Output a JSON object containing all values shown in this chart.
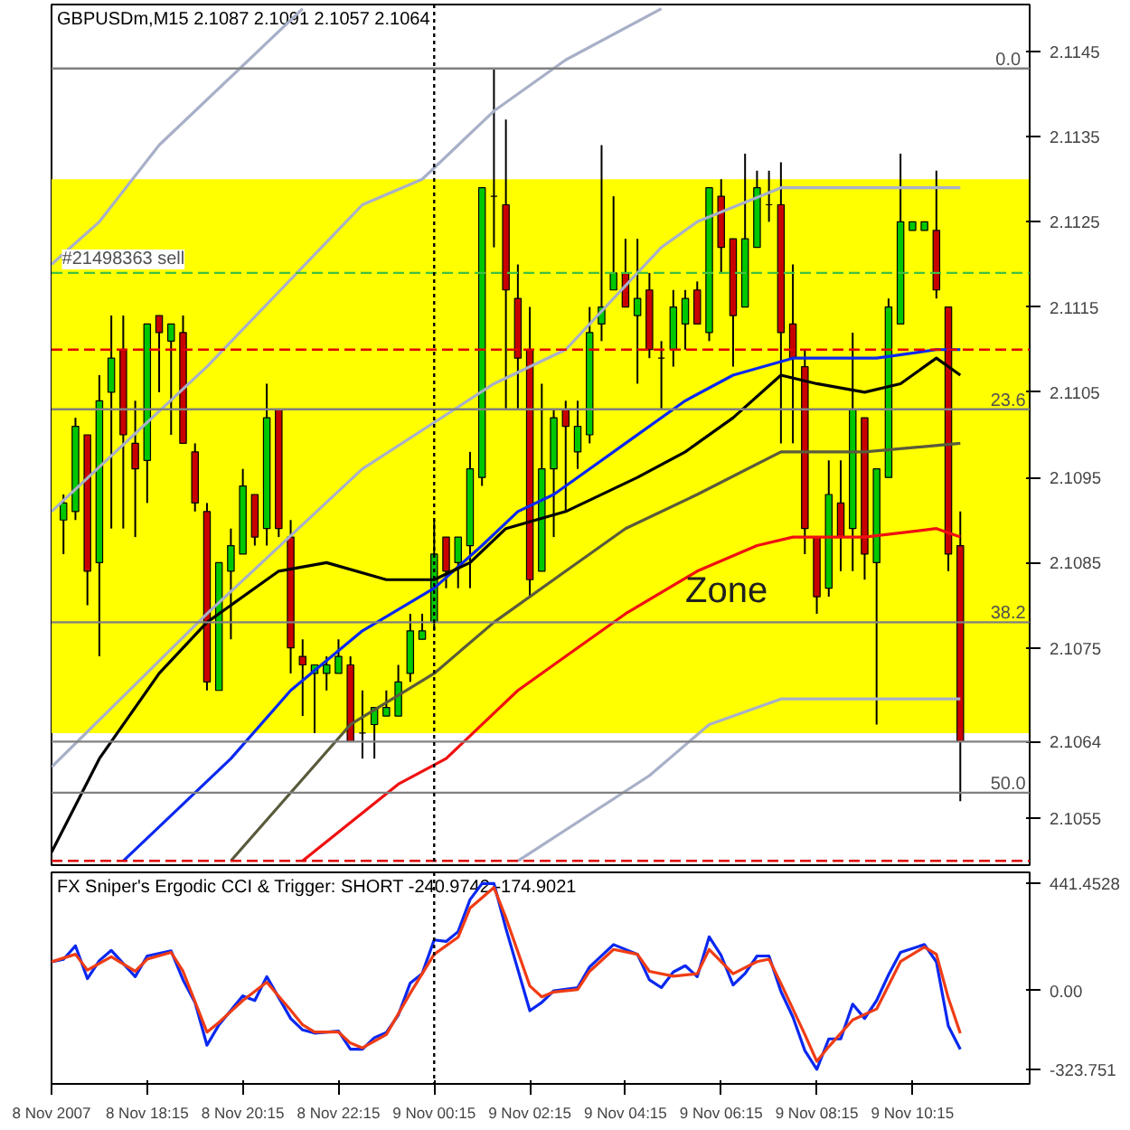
{
  "chart_data": [
    {
      "type": "candlestick",
      "title": "GBPUSDm,M15  2.1087 2.1091 2.1057 2.1064",
      "x": [
        "2007-11-08T16:30",
        "2007-11-08T16:45",
        "2007-11-08T17:00",
        "2007-11-08T17:15",
        "2007-11-08T17:30",
        "2007-11-08T17:45",
        "2007-11-08T18:00",
        "2007-11-08T18:15",
        "2007-11-08T18:30",
        "2007-11-08T18:45",
        "2007-11-08T19:00",
        "2007-11-08T19:15",
        "2007-11-08T19:30",
        "2007-11-08T19:45",
        "2007-11-08T20:00",
        "2007-11-08T20:15",
        "2007-11-08T20:30",
        "2007-11-08T20:45",
        "2007-11-08T21:00",
        "2007-11-08T21:15",
        "2007-11-08T21:30",
        "2007-11-08T21:45",
        "2007-11-08T22:00",
        "2007-11-08T22:15",
        "2007-11-08T22:30",
        "2007-11-08T22:45",
        "2007-11-08T23:00",
        "2007-11-08T23:15",
        "2007-11-08T23:30",
        "2007-11-08T23:45",
        "2007-11-09T00:00",
        "2007-11-09T00:15",
        "2007-11-09T00:30",
        "2007-11-09T00:45",
        "2007-11-09T01:00",
        "2007-11-09T01:15",
        "2007-11-09T01:30",
        "2007-11-09T01:45",
        "2007-11-09T02:00",
        "2007-11-09T02:15",
        "2007-11-09T02:30",
        "2007-11-09T02:45",
        "2007-11-09T03:00",
        "2007-11-09T03:15",
        "2007-11-09T03:30",
        "2007-11-09T03:45",
        "2007-11-09T04:00",
        "2007-11-09T04:15",
        "2007-11-09T04:30",
        "2007-11-09T04:45",
        "2007-11-09T05:00",
        "2007-11-09T05:15",
        "2007-11-09T05:30",
        "2007-11-09T05:45",
        "2007-11-09T06:00",
        "2007-11-09T06:15",
        "2007-11-09T06:30",
        "2007-11-09T06:45",
        "2007-11-09T07:00",
        "2007-11-09T07:15",
        "2007-11-09T07:30",
        "2007-11-09T07:45",
        "2007-11-09T08:00",
        "2007-11-09T08:15",
        "2007-11-09T08:30",
        "2007-11-09T08:45",
        "2007-11-09T09:00",
        "2007-11-09T09:15",
        "2007-11-09T09:30",
        "2007-11-09T09:45",
        "2007-11-09T10:00",
        "2007-11-09T10:15",
        "2007-11-09T10:30",
        "2007-11-09T10:45",
        "2007-11-09T11:00",
        "2007-11-09T11:15"
      ],
      "ohlc": [
        [
          2.109,
          2.1093,
          2.1086,
          2.1092
        ],
        [
          2.1091,
          2.1102,
          2.109,
          2.1101
        ],
        [
          2.11,
          2.11,
          2.108,
          2.1084
        ],
        [
          2.1085,
          2.1107,
          2.1074,
          2.1104
        ],
        [
          2.1105,
          2.1114,
          2.1089,
          2.1109
        ],
        [
          2.111,
          2.1114,
          2.1089,
          2.11
        ],
        [
          2.1099,
          2.1104,
          2.1088,
          2.1096
        ],
        [
          2.1097,
          2.1113,
          2.1092,
          2.1113
        ],
        [
          2.1114,
          2.1114,
          2.1105,
          2.1112
        ],
        [
          2.1111,
          2.1113,
          2.11,
          2.1113
        ],
        [
          2.1112,
          2.1114,
          2.1099,
          2.1099
        ],
        [
          2.1098,
          2.1099,
          2.1091,
          2.1092
        ],
        [
          2.1091,
          2.1092,
          2.107,
          2.1071
        ],
        [
          2.107,
          2.1085,
          2.107,
          2.1085
        ],
        [
          2.1084,
          2.1089,
          2.1076,
          2.1087
        ],
        [
          2.1086,
          2.1096,
          2.1086,
          2.1094
        ],
        [
          2.1093,
          2.1093,
          2.1087,
          2.1088
        ],
        [
          2.1089,
          2.1106,
          2.1087,
          2.1102
        ],
        [
          2.1103,
          2.1103,
          2.1088,
          2.1089
        ],
        [
          2.1088,
          2.109,
          2.1072,
          2.1075
        ],
        [
          2.1074,
          2.1076,
          2.1067,
          2.1073
        ],
        [
          2.1072,
          2.1073,
          2.1065,
          2.1073
        ],
        [
          2.1072,
          2.1074,
          2.107,
          2.1073
        ],
        [
          2.1072,
          2.1076,
          2.1072,
          2.1074
        ],
        [
          2.1073,
          2.1074,
          2.1064,
          2.1064
        ],
        [
          2.1065,
          2.107,
          2.1062,
          2.1065
        ],
        [
          2.1066,
          2.1068,
          2.1062,
          2.1068
        ],
        [
          2.1067,
          2.107,
          2.1067,
          2.1068
        ],
        [
          2.1067,
          2.1073,
          2.1067,
          2.1071
        ],
        [
          2.1072,
          2.1079,
          2.1071,
          2.1077
        ],
        [
          2.1076,
          2.1079,
          2.1076,
          2.1077
        ],
        [
          2.1078,
          2.109,
          2.1077,
          2.1086
        ],
        [
          2.1088,
          2.1088,
          2.1082,
          2.1084
        ],
        [
          2.1085,
          2.1088,
          2.1082,
          2.1088
        ],
        [
          2.1087,
          2.1098,
          2.1082,
          2.1096
        ],
        [
          2.1095,
          2.1129,
          2.1094,
          2.1129
        ],
        [
          2.1128,
          2.1143,
          2.1122,
          2.1128
        ],
        [
          2.1127,
          2.1137,
          2.1103,
          2.1117
        ],
        [
          2.1116,
          2.112,
          2.1103,
          2.1109
        ],
        [
          2.111,
          2.1115,
          2.1081,
          2.1083
        ],
        [
          2.1084,
          2.1106,
          2.1084,
          2.1096
        ],
        [
          2.1096,
          2.1103,
          2.1088,
          2.1102
        ],
        [
          2.1103,
          2.1104,
          2.1091,
          2.1101
        ],
        [
          2.1098,
          2.1104,
          2.1096,
          2.1101
        ],
        [
          2.11,
          2.1115,
          2.1099,
          2.1112
        ],
        [
          2.1113,
          2.1134,
          2.1111,
          2.1115
        ],
        [
          2.1117,
          2.1128,
          2.1117,
          2.1119
        ],
        [
          2.1119,
          2.1123,
          2.1115,
          2.1115
        ],
        [
          2.1114,
          2.1123,
          2.1106,
          2.1116
        ],
        [
          2.1117,
          2.1119,
          2.1109,
          2.111
        ],
        [
          2.1109,
          2.1111,
          2.1103,
          2.1109
        ],
        [
          2.111,
          2.1117,
          2.1108,
          2.1115
        ],
        [
          2.1113,
          2.1117,
          2.111,
          2.1116
        ],
        [
          2.1117,
          2.1118,
          2.1113,
          2.1113
        ],
        [
          2.1112,
          2.1129,
          2.1111,
          2.1129
        ],
        [
          2.1128,
          2.113,
          2.1119,
          2.1122
        ],
        [
          2.1123,
          2.1123,
          2.1108,
          2.1114
        ],
        [
          2.1115,
          2.1133,
          2.1115,
          2.1123
        ],
        [
          2.1122,
          2.1131,
          2.1122,
          2.1129
        ],
        [
          2.1127,
          2.1131,
          2.1125,
          2.1127
        ],
        [
          2.1127,
          2.1132,
          2.1099,
          2.1112
        ],
        [
          2.1113,
          2.112,
          2.1099,
          2.1109
        ],
        [
          2.1108,
          2.111,
          2.1086,
          2.1089
        ],
        [
          2.1088,
          2.1088,
          2.1079,
          2.1081
        ],
        [
          2.1082,
          2.1097,
          2.1081,
          2.1093
        ],
        [
          2.1092,
          2.1097,
          2.1084,
          2.1088
        ],
        [
          2.1089,
          2.1112,
          2.1084,
          2.1103
        ],
        [
          2.1102,
          2.1102,
          2.1083,
          2.1086
        ],
        [
          2.1085,
          2.1096,
          2.1066,
          2.1096
        ],
        [
          2.1095,
          2.1116,
          2.1095,
          2.1115
        ],
        [
          2.1113,
          2.1133,
          2.1113,
          2.1125
        ],
        [
          2.1124,
          2.1125,
          2.1124,
          2.1125
        ],
        [
          2.1124,
          2.1125,
          2.1124,
          2.1125
        ],
        [
          2.1124,
          2.1131,
          2.1116,
          2.1117
        ],
        [
          2.1115,
          2.1115,
          2.1084,
          2.1086
        ],
        [
          2.1087,
          2.1091,
          2.1057,
          2.1064
        ]
      ],
      "colors": [
        "#00c800",
        "#00c800",
        "#c80000",
        "#00c800",
        "#00c800",
        "#c80000",
        "#c80000",
        "#00c800",
        "#c80000",
        "#00c800",
        "#c80000",
        "#c80000",
        "#c80000",
        "#00c800",
        "#00c800",
        "#00c800",
        "#c80000",
        "#00c800",
        "#c80000",
        "#c80000",
        "#c80000",
        "#00c800",
        "#00c800",
        "#00c800",
        "#c80000",
        "#000000",
        "#00c800",
        "#00c800",
        "#00c800",
        "#00c800",
        "#00c800",
        "#00c800",
        "#c80000",
        "#00c800",
        "#00c800",
        "#00c800",
        "#000000",
        "#c80000",
        "#c80000",
        "#c80000",
        "#00c800",
        "#00c800",
        "#c80000",
        "#00c800",
        "#00c800",
        "#00c800",
        "#00c800",
        "#c80000",
        "#00c800",
        "#c80000",
        "#000000",
        "#00c800",
        "#00c800",
        "#c80000",
        "#00c800",
        "#c80000",
        "#c80000",
        "#00c800",
        "#00c800",
        "#000000",
        "#c80000",
        "#c80000",
        "#c80000",
        "#c80000",
        "#00c800",
        "#c80000",
        "#00c800",
        "#c80000",
        "#00c800",
        "#00c800",
        "#00c800",
        "#00c800",
        "#00c800",
        "#c80000",
        "#c80000",
        "#c80000"
      ],
      "series": [
        {
          "type": "line",
          "color": "#0a28f0",
          "x": [
            "2007-11-08T17:45",
            "2007-11-08T20:00",
            "2007-11-08T21:15",
            "2007-11-08T22:45",
            "2007-11-09T00:15",
            "2007-11-09T01:15",
            "2007-11-09T02:00",
            "2007-11-09T02:45",
            "2007-11-09T04:15",
            "2007-11-09T05:30",
            "2007-11-09T06:30",
            "2007-11-09T07:45",
            "2007-11-09T09:30",
            "2007-11-09T10:45",
            "2007-11-09T11:15"
          ],
          "values": [
            2.105,
            2.1062,
            2.107,
            2.1077,
            2.1082,
            2.1087,
            2.1091,
            2.1093,
            2.1099,
            2.1104,
            2.1107,
            2.1109,
            2.1109,
            2.111,
            2.111
          ]
        },
        {
          "type": "line",
          "color": "#000000",
          "x": [
            "2007-11-08T16:15",
            "2007-11-08T17:15",
            "2007-11-08T18:30",
            "2007-11-08T19:30",
            "2007-11-08T21:00",
            "2007-11-08T22:00",
            "2007-11-08T23:15",
            "2007-11-09T00:15",
            "2007-11-09T01:00",
            "2007-11-09T01:45",
            "2007-11-09T03:00",
            "2007-11-09T04:30",
            "2007-11-09T05:30",
            "2007-11-09T06:30",
            "2007-11-09T07:30",
            "2007-11-09T08:15",
            "2007-11-09T09:15",
            "2007-11-09T10:00",
            "2007-11-09T10:45",
            "2007-11-09T11:15"
          ],
          "values": [
            2.1051,
            2.1062,
            2.1072,
            2.1078,
            2.1084,
            2.1085,
            2.1083,
            2.1083,
            2.1085,
            2.1089,
            2.1091,
            2.1095,
            2.1098,
            2.1102,
            2.1107,
            2.1106,
            2.1105,
            2.1106,
            2.1109,
            2.1107
          ]
        },
        {
          "type": "line",
          "color": "#f01010",
          "x": [
            "2007-11-08T21:30",
            "2007-11-08T23:30",
            "2007-11-09T00:30",
            "2007-11-09T02:00",
            "2007-11-09T03:00",
            "2007-11-09T04:15",
            "2007-11-09T05:45",
            "2007-11-09T07:00",
            "2007-11-09T07:45",
            "2007-11-09T09:15",
            "2007-11-09T10:45",
            "2007-11-09T11:15"
          ],
          "values": [
            2.105,
            2.1059,
            2.1062,
            2.107,
            2.1074,
            2.1079,
            2.1084,
            2.1087,
            2.1088,
            2.1088,
            2.1089,
            2.1088
          ]
        },
        {
          "type": "line",
          "color": "#5a5a3c",
          "x": [
            "2007-11-08T20:00",
            "2007-11-08T22:30",
            "2007-11-09T00:15",
            "2007-11-09T01:30",
            "2007-11-09T03:00",
            "2007-11-09T04:15",
            "2007-11-09T05:45",
            "2007-11-09T07:30",
            "2007-11-09T09:15",
            "2007-11-09T11:15"
          ],
          "values": [
            2.105,
            2.1066,
            2.1072,
            2.1078,
            2.1084,
            2.1089,
            2.1093,
            2.1098,
            2.1098,
            2.1099
          ]
        },
        {
          "type": "line",
          "color": "#a8b0c8",
          "x": [
            "2007-11-08T16:15",
            "2007-11-08T19:30",
            "2007-11-08T22:45",
            "2007-11-09T00:00",
            "2007-11-09T01:30",
            "2007-11-09T03:00",
            "2007-11-09T05:00"
          ],
          "values": [
            2.1091,
            2.1108,
            2.1127,
            2.113,
            2.1138,
            2.1144,
            2.115
          ]
        },
        {
          "type": "line",
          "color": "#a8b0c8",
          "x": [
            "2007-11-08T16:15",
            "2007-11-08T17:15",
            "2007-11-08T18:30",
            "2007-11-08T21:30"
          ],
          "values": [
            2.112,
            2.1125,
            2.1134,
            2.115
          ]
        },
        {
          "type": "line",
          "color": "#a8b0c8",
          "x": [
            "2007-11-08T16:15",
            "2007-11-08T19:30",
            "2007-11-08T22:45",
            "2007-11-09T01:30",
            "2007-11-09T03:00",
            "2007-11-09T05:00",
            "2007-11-09T05:45",
            "2007-11-09T07:30",
            "2007-11-09T11:15"
          ],
          "values": [
            2.1061,
            2.1079,
            2.1096,
            2.1106,
            2.111,
            2.1122,
            2.1125,
            2.1129,
            2.1129
          ]
        },
        {
          "type": "line",
          "color": "#a8b0c8",
          "x": [
            "2007-11-09T02:00",
            "2007-11-09T04:45",
            "2007-11-09T06:00",
            "2007-11-09T07:30",
            "2007-11-09T11:15"
          ],
          "values": [
            2.105,
            2.106,
            2.1066,
            2.1069,
            2.1069
          ]
        }
      ],
      "xlim": [
        "2007-11-08T16:15",
        "2007-11-09T12:42"
      ],
      "ylim": [
        2.10495,
        2.11505
      ],
      "yticks": [
        2.1055,
        2.1075,
        2.1085,
        2.1095,
        2.1105,
        2.1115,
        2.1125,
        2.1135,
        2.1145
      ],
      "tick_labels": "y",
      "grid": false,
      "line_style": "solid",
      "marker": "none",
      "bands": [
        {
          "axis": "y",
          "from": 2.1065,
          "to": 2.113,
          "label": "Zone",
          "color": "#ffff00"
        }
      ],
      "ref_lines": [
        {
          "axis": "y",
          "value": 2.1143,
          "color": "#808080"
        },
        {
          "axis": "y",
          "value": 2.1103,
          "color": "#808080"
        },
        {
          "axis": "y",
          "value": 2.1078,
          "color": "#808080"
        },
        {
          "axis": "y",
          "value": 2.1058,
          "color": "#808080"
        },
        {
          "axis": "y",
          "value": 2.1064,
          "color": "#808080",
          "label": "2.1064"
        },
        {
          "axis": "y",
          "value": 2.1119,
          "color": "#40c040",
          "line_style": "dashed"
        },
        {
          "axis": "y",
          "value": 2.111,
          "color": "#e00000",
          "line_style": "dashed"
        },
        {
          "axis": "y",
          "value": 2.105,
          "color": "#e00000",
          "line_style": "dashed"
        },
        {
          "axis": "x",
          "value": "2007-11-09T00:15",
          "color": "#000000",
          "line_style": "dotted"
        }
      ],
      "annotations": [
        {
          "text": "0.0",
          "x": "2007-11-09T12:15",
          "y": 2.1143
        },
        {
          "text": "23.6",
          "x": "2007-11-09T12:15",
          "y": 2.1103
        },
        {
          "text": "38.2",
          "x": "2007-11-09T12:15",
          "y": 2.1078
        },
        {
          "text": "50.0",
          "x": "2007-11-09T12:15",
          "y": 2.1058
        },
        {
          "text": "#21498363 sell",
          "x": "2007-11-08T17:45",
          "y": 2.1119
        }
      ]
    },
    {
      "type": "line",
      "title": "FX Sniper's Ergodic CCI & Trigger: SHORT -240.9742 -174.9021",
      "series": [
        {
          "color": "#0a28f0",
          "x": [
            "2007-11-08T16:15",
            "2007-11-08T16:30",
            "2007-11-08T16:45",
            "2007-11-08T17:00",
            "2007-11-08T17:15",
            "2007-11-08T17:30",
            "2007-11-08T18:00",
            "2007-11-08T18:15",
            "2007-11-08T18:45",
            "2007-11-08T19:00",
            "2007-11-08T19:15",
            "2007-11-08T19:30",
            "2007-11-08T19:45",
            "2007-11-08T20:15",
            "2007-11-08T20:30",
            "2007-11-08T20:45",
            "2007-11-08T21:15",
            "2007-11-08T21:30",
            "2007-11-08T21:45",
            "2007-11-08T22:15",
            "2007-11-08T22:30",
            "2007-11-08T22:45",
            "2007-11-08T23:00",
            "2007-11-08T23:15",
            "2007-11-08T23:30",
            "2007-11-08T23:45",
            "2007-11-09T00:00",
            "2007-11-09T00:15",
            "2007-11-09T00:30",
            "2007-11-09T00:45",
            "2007-11-09T01:00",
            "2007-11-09T01:15",
            "2007-11-09T01:30",
            "2007-11-09T01:45",
            "2007-11-09T02:15",
            "2007-11-09T02:30",
            "2007-11-09T02:45",
            "2007-11-09T03:15",
            "2007-11-09T03:30",
            "2007-11-09T04:00",
            "2007-11-09T04:30",
            "2007-11-09T04:45",
            "2007-11-09T05:00",
            "2007-11-09T05:15",
            "2007-11-09T05:30",
            "2007-11-09T05:45",
            "2007-11-09T06:00",
            "2007-11-09T06:15",
            "2007-11-09T06:30",
            "2007-11-09T06:45",
            "2007-11-09T07:00",
            "2007-11-09T07:15",
            "2007-11-09T07:30",
            "2007-11-09T07:45",
            "2007-11-09T08:00",
            "2007-11-09T08:15",
            "2007-11-09T08:30",
            "2007-11-09T08:45",
            "2007-11-09T09:00",
            "2007-11-09T09:15",
            "2007-11-09T09:30",
            "2007-11-09T09:45",
            "2007-11-09T10:00",
            "2007-11-09T10:30",
            "2007-11-09T10:45",
            "2007-11-09T11:00",
            "2007-11-09T11:15"
          ],
          "values": [
            119,
            129,
            185,
            50,
            124,
            166,
            58,
            143,
            164,
            45,
            -48,
            -224,
            -140,
            -21,
            -40,
            58,
            -114,
            -161,
            -174,
            -166,
            -240,
            -240,
            -193,
            -172,
            -100,
            32,
            71,
            209,
            203,
            243,
            375,
            441,
            441,
            256,
            -82,
            -48,
            0,
            13,
            98,
            190,
            150,
            45,
            13,
            77,
            103,
            58,
            222,
            145,
            24,
            71,
            143,
            143,
            -3,
            -108,
            -246,
            -323,
            -198,
            -198,
            -55,
            -114,
            -40,
            66,
            158,
            190,
            119,
            -145,
            -241
          ]
        },
        {
          "color": "#f03c14",
          "x": [
            "2007-11-08T16:15",
            "2007-11-08T16:45",
            "2007-11-08T17:00",
            "2007-11-08T17:30",
            "2007-11-08T18:00",
            "2007-11-08T18:15",
            "2007-11-08T18:45",
            "2007-11-08T19:00",
            "2007-11-08T19:30",
            "2007-11-08T19:45",
            "2007-11-08T20:15",
            "2007-11-08T20:45",
            "2007-11-08T21:15",
            "2007-11-08T21:30",
            "2007-11-08T21:45",
            "2007-11-08T22:15",
            "2007-11-08T22:30",
            "2007-11-08T22:45",
            "2007-11-08T23:15",
            "2007-11-08T23:45",
            "2007-11-09T00:15",
            "2007-11-09T00:45",
            "2007-11-09T01:00",
            "2007-11-09T01:30",
            "2007-11-09T01:45",
            "2007-11-09T02:15",
            "2007-11-09T02:30",
            "2007-11-09T02:45",
            "2007-11-09T03:15",
            "2007-11-09T03:30",
            "2007-11-09T04:00",
            "2007-11-09T04:30",
            "2007-11-09T04:45",
            "2007-11-09T05:15",
            "2007-11-09T05:45",
            "2007-11-09T06:00",
            "2007-11-09T06:30",
            "2007-11-09T07:00",
            "2007-11-09T07:15",
            "2007-11-09T07:30",
            "2007-11-09T08:00",
            "2007-11-09T08:15",
            "2007-11-09T08:30",
            "2007-11-09T09:00",
            "2007-11-09T09:30",
            "2007-11-09T10:00",
            "2007-11-09T10:30",
            "2007-11-09T10:45",
            "2007-11-09T11:00",
            "2007-11-09T11:15"
          ],
          "values": [
            119,
            150,
            85,
            140,
            80,
            130,
            158,
            80,
            -170,
            -130,
            -40,
            35,
            -80,
            -140,
            -170,
            -170,
            -215,
            -235,
            -180,
            -10,
            150,
            220,
            340,
            425,
            300,
            20,
            -25,
            -5,
            5,
            80,
            170,
            150,
            80,
            60,
            70,
            170,
            70,
            120,
            130,
            30,
            -180,
            -290,
            -230,
            -120,
            -75,
            120,
            180,
            150,
            -30,
            -175
          ]
        }
      ],
      "xlim": [
        "2007-11-08T16:15",
        "2007-11-09T12:42"
      ],
      "ylim": [
        -383,
        487
      ],
      "xticks": [
        {
          "value": "2007-11-08T16:15",
          "label": "8 Nov 2007"
        },
        {
          "value": "2007-11-08T18:15",
          "label": "8 Nov 18:15"
        },
        {
          "value": "2007-11-08T20:15",
          "label": "8 Nov 20:15"
        },
        {
          "value": "2007-11-08T22:15",
          "label": "8 Nov 22:15"
        },
        {
          "value": "2007-11-09T00:15",
          "label": "9 Nov 00:15"
        },
        {
          "value": "2007-11-09T02:15",
          "label": "9 Nov 02:15"
        },
        {
          "value": "2007-11-09T04:15",
          "label": "9 Nov 04:15"
        },
        {
          "value": "2007-11-09T06:15",
          "label": "9 Nov 06:15"
        },
        {
          "value": "2007-11-09T08:15",
          "label": "9 Nov 08:15"
        },
        {
          "value": "2007-11-09T10:15",
          "label": "9 Nov 10:15"
        }
      ],
      "yticks": [
        441.4528,
        {
          "value": 0,
          "label": "0.00"
        },
        -323.751
      ],
      "grid": false,
      "line_style": "solid",
      "marker": "none",
      "ref_lines": [
        {
          "axis": "x",
          "value": "2007-11-09T00:15",
          "color": "#000000",
          "line_style": "dotted"
        }
      ]
    }
  ]
}
